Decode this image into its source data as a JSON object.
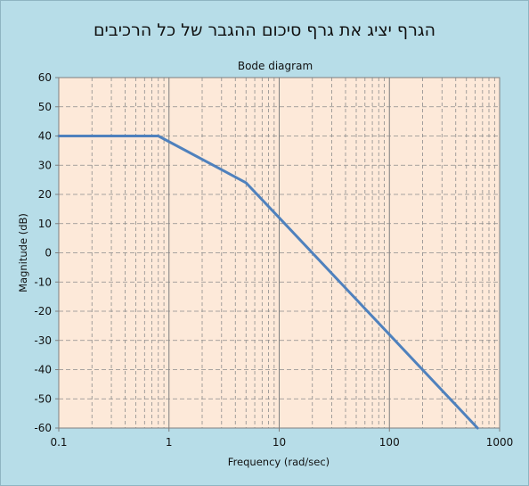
{
  "header": {
    "title": "הגרף יציג את גרף סיכום ההגבר של כל הרכיבים"
  },
  "colors": {
    "background": "#b7dde8",
    "plot_area": "#fde9d9",
    "series_line": "#4f81bd",
    "major_grid": "#7f7f7f",
    "minor_grid": "#8c8c8c"
  },
  "chart_data": {
    "type": "line",
    "title": "Bode diagram",
    "xlabel": "Frequency (rad/sec)",
    "ylabel": "Magnitude (dB)",
    "x_scale": "log",
    "xlim": [
      0.1,
      1000
    ],
    "ylim": [
      -60,
      60
    ],
    "x_ticks": [
      "0.1",
      "1",
      "10",
      "100",
      "1000"
    ],
    "y_ticks": [
      "60",
      "50",
      "40",
      "30",
      "20",
      "10",
      "0",
      "-10",
      "-20",
      "-30",
      "-40",
      "-50",
      "-60"
    ],
    "grid": "major solid vertical, minor dashed vertical, dashed horizontal",
    "legend": "none",
    "series": [
      {
        "x": [
          0.1,
          0.8,
          5,
          10,
          100,
          630
        ],
        "y": [
          40,
          40,
          24,
          12,
          -28,
          -60
        ]
      }
    ]
  }
}
